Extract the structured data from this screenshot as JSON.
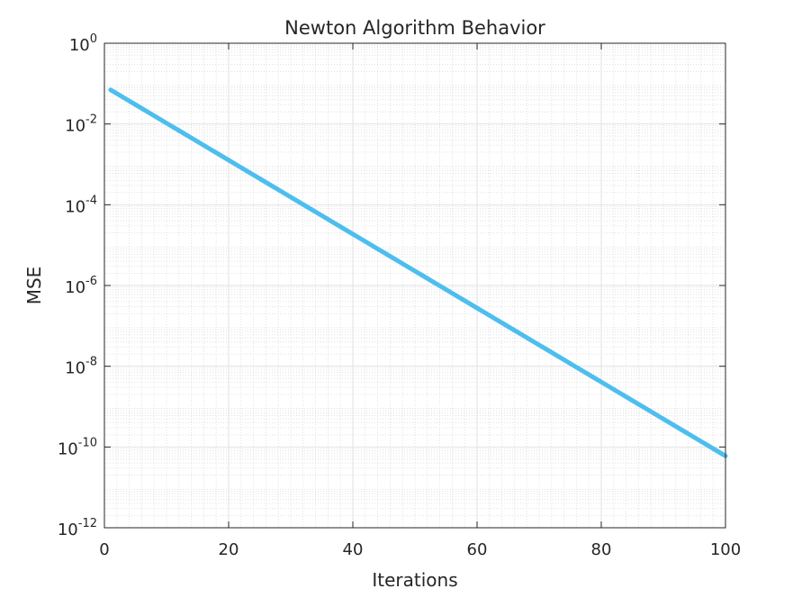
{
  "chart_data": {
    "type": "line",
    "title": "Newton Algorithm Behavior",
    "xlabel": "Iterations",
    "ylabel": "MSE",
    "xlim": [
      0,
      100
    ],
    "ylim": [
      1e-12,
      1
    ],
    "yscale": "log",
    "grid": true,
    "minor_grid": true,
    "x_ticks": [
      0,
      20,
      40,
      60,
      80,
      100
    ],
    "x_tick_labels": [
      "0",
      "20",
      "40",
      "60",
      "80",
      "100"
    ],
    "y_tick_labels": [
      {
        "base": "10",
        "exp": "-12",
        "value": 1e-12
      },
      {
        "base": "10",
        "exp": "-10",
        "value": 1e-10
      },
      {
        "base": "10",
        "exp": "-8",
        "value": 1e-08
      },
      {
        "base": "10",
        "exp": "-6",
        "value": 1e-06
      },
      {
        "base": "10",
        "exp": "-4",
        "value": 0.0001
      },
      {
        "base": "10",
        "exp": "-2",
        "value": 0.01
      },
      {
        "base": "10",
        "exp": "0",
        "value": 1
      }
    ],
    "series": [
      {
        "color": "#4DBEEE",
        "x_start": 1,
        "x_end": 100,
        "y_start": 0.07,
        "y_end": 6e-11
      }
    ]
  }
}
